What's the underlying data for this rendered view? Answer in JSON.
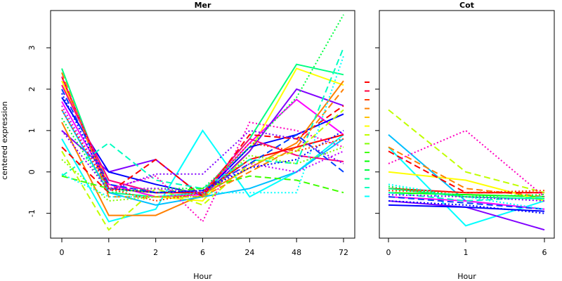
{
  "chart_data": [
    {
      "type": "line",
      "title": "Mer",
      "xlabel": "Hour",
      "ylabel": "centered expression",
      "categories": [
        "0",
        "1",
        "2",
        "6",
        "24",
        "48",
        "72"
      ],
      "yticks": [
        -1,
        0,
        1,
        2,
        3
      ],
      "ylim": [
        -1.6,
        3.9
      ],
      "grid": false,
      "series": [
        {
          "color": "#00FF80",
          "dash": "solid",
          "values": [
            2.5,
            -0.5,
            -0.6,
            -0.5,
            0.8,
            2.6,
            2.35
          ]
        },
        {
          "color": "#FFFF00",
          "dash": "solid",
          "values": [
            2.2,
            -0.3,
            -0.6,
            -0.7,
            0.5,
            2.5,
            2.1
          ]
        },
        {
          "color": "#FF00FF",
          "dash": "solid",
          "values": [
            1.7,
            -0.3,
            -0.6,
            -0.55,
            0.7,
            1.75,
            0.9
          ]
        },
        {
          "color": "#8000FF",
          "dash": "solid",
          "values": [
            1.0,
            0.0,
            0.3,
            -0.6,
            0.5,
            2.0,
            1.6
          ]
        },
        {
          "color": "#0000FF",
          "dash": "solid",
          "values": [
            1.8,
            0.0,
            -0.3,
            -0.55,
            0.6,
            0.9,
            1.4
          ]
        },
        {
          "color": "#00FFFF",
          "dash": "solid",
          "values": [
            0.8,
            -1.2,
            -0.9,
            1.0,
            -0.6,
            0.0,
            0.9
          ]
        },
        {
          "color": "#FF8000",
          "dash": "solid",
          "values": [
            1.2,
            -1.05,
            -1.05,
            -0.55,
            0.1,
            0.7,
            2.2
          ]
        },
        {
          "color": "#00BFFF",
          "dash": "solid",
          "values": [
            1.5,
            -0.5,
            -0.8,
            -0.6,
            -0.4,
            0.0,
            0.8
          ]
        },
        {
          "color": "#FF0080",
          "dash": "solid",
          "values": [
            2.1,
            -0.2,
            -0.5,
            -0.5,
            0.8,
            0.4,
            0.25
          ]
        },
        {
          "color": "#FF0000",
          "dash": "solid",
          "values": [
            2.3,
            -0.4,
            -0.5,
            -0.5,
            0.3,
            0.6,
            0.9
          ]
        },
        {
          "color": "#00FFC0",
          "dash": "dashed",
          "values": [
            -0.1,
            0.7,
            -0.2,
            -0.4,
            0.3,
            0.2,
            3.0
          ]
        },
        {
          "color": "#C0FF00",
          "dash": "dashed",
          "values": [
            0.5,
            -1.4,
            -0.4,
            -0.8,
            0.2,
            0.5,
            1.5
          ]
        },
        {
          "color": "#FF0000",
          "dash": "dashed",
          "values": [
            0.6,
            -0.5,
            0.3,
            -0.6,
            0.9,
            0.8,
            1.6
          ]
        },
        {
          "color": "#40FF00",
          "dash": "dashed",
          "values": [
            -0.1,
            -0.4,
            -0.5,
            -0.4,
            -0.1,
            -0.2,
            -0.5
          ]
        },
        {
          "color": "#0040FF",
          "dash": "dashed",
          "values": [
            2.0,
            -0.3,
            -0.5,
            -0.45,
            0.2,
            0.9,
            0.0
          ]
        },
        {
          "color": "#FF8000",
          "dash": "dashed",
          "values": [
            2.4,
            -0.6,
            -0.6,
            -0.6,
            0.0,
            0.6,
            2.0
          ]
        },
        {
          "color": "#FF00C0",
          "dash": "dotted",
          "values": [
            2.3,
            -0.4,
            -0.1,
            -1.2,
            1.2,
            1.0,
            0.6
          ]
        },
        {
          "color": "#00FF40",
          "dash": "dotted",
          "values": [
            1.3,
            -0.5,
            -0.4,
            -0.4,
            0.6,
            1.8,
            3.8
          ]
        },
        {
          "color": "#00FFFF",
          "dash": "dotted",
          "values": [
            -0.05,
            -0.6,
            -0.6,
            -0.5,
            -0.5,
            -0.5,
            2.8
          ]
        },
        {
          "color": "#8000FF",
          "dash": "dotted",
          "values": [
            1.0,
            -0.45,
            -0.05,
            -0.05,
            1.0,
            0.8,
            0.2
          ]
        },
        {
          "color": "#C000FF",
          "dash": "dotted",
          "values": [
            1.6,
            -0.4,
            -0.4,
            -0.5,
            0.2,
            0.0,
            0.5
          ]
        },
        {
          "color": "#80FF00",
          "dash": "dotted",
          "values": [
            0.3,
            -0.7,
            -0.6,
            -0.6,
            0.4,
            0.2,
            0.6
          ]
        },
        {
          "color": "#0000FF",
          "dash": "dotted",
          "values": [
            1.9,
            -0.4,
            -0.5,
            -0.45,
            0.1,
            0.3,
            1.0
          ]
        },
        {
          "color": "#FF4000",
          "dash": "dotted",
          "values": [
            1.5,
            -0.4,
            -0.7,
            -0.5,
            0.7,
            0.5,
            0.8
          ]
        }
      ]
    },
    {
      "type": "line",
      "title": "Cot",
      "xlabel": "Hour",
      "ylabel": "",
      "categories": [
        "0",
        "1",
        "6"
      ],
      "ylim": [
        -1.6,
        3.9
      ],
      "grid": false,
      "legend_keys": [
        "#FF0000",
        "#FF0040",
        "#FF4000",
        "#FF8000",
        "#FFC000",
        "#FFFF00",
        "#C0FF00",
        "#80FF00",
        "#40FF00",
        "#00FF00",
        "#00FF40",
        "#00FF80",
        "#00FFC0",
        "#00FFFF"
      ],
      "series": [
        {
          "color": "#00BFFF",
          "dash": "solid",
          "values": [
            0.9,
            -0.7,
            -0.9
          ]
        },
        {
          "color": "#00FFFF",
          "dash": "solid",
          "values": [
            0.6,
            -1.3,
            -0.7
          ]
        },
        {
          "color": "#8000FF",
          "dash": "solid",
          "values": [
            -0.7,
            -0.85,
            -1.4
          ]
        },
        {
          "color": "#FF0000",
          "dash": "solid",
          "values": [
            -0.4,
            -0.5,
            -0.5
          ]
        },
        {
          "color": "#00FF00",
          "dash": "solid",
          "values": [
            -0.5,
            -0.55,
            -0.6
          ]
        },
        {
          "color": "#FFFF00",
          "dash": "solid",
          "values": [
            0.0,
            -0.2,
            -0.7
          ]
        },
        {
          "color": "#0000FF",
          "dash": "solid",
          "values": [
            -0.8,
            -0.85,
            -0.95
          ]
        },
        {
          "color": "#FF00FF",
          "dash": "solid",
          "values": [
            -0.6,
            -0.7,
            -0.9
          ]
        },
        {
          "color": "#00FF80",
          "dash": "solid",
          "values": [
            -0.4,
            -0.6,
            -0.65
          ]
        },
        {
          "color": "#C0FF00",
          "dash": "dashed",
          "values": [
            1.5,
            0.0,
            -0.5
          ]
        },
        {
          "color": "#FF8000",
          "dash": "dashed",
          "values": [
            0.6,
            -0.4,
            -0.6
          ]
        },
        {
          "color": "#FF0000",
          "dash": "dashed",
          "values": [
            0.5,
            -0.5,
            -0.5
          ]
        },
        {
          "color": "#00FFC0",
          "dash": "dashed",
          "values": [
            -0.5,
            -0.7,
            -0.6
          ]
        },
        {
          "color": "#0040FF",
          "dash": "dashed",
          "values": [
            -0.6,
            -0.75,
            -0.9
          ]
        },
        {
          "color": "#FF00C0",
          "dash": "dotted",
          "values": [
            0.2,
            1.0,
            -0.6
          ]
        },
        {
          "color": "#00FFFF",
          "dash": "dotted",
          "values": [
            -0.3,
            -0.6,
            -0.9
          ]
        },
        {
          "color": "#8000FF",
          "dash": "dotted",
          "values": [
            -0.55,
            -0.6,
            -0.7
          ]
        },
        {
          "color": "#FF4000",
          "dash": "dotted",
          "values": [
            -0.45,
            -0.5,
            -0.45
          ]
        },
        {
          "color": "#00FF40",
          "dash": "dotted",
          "values": [
            -0.35,
            -0.6,
            -0.55
          ]
        },
        {
          "color": "#0000FF",
          "dash": "dotted",
          "values": [
            -0.7,
            -0.8,
            -1.0
          ]
        }
      ]
    }
  ]
}
